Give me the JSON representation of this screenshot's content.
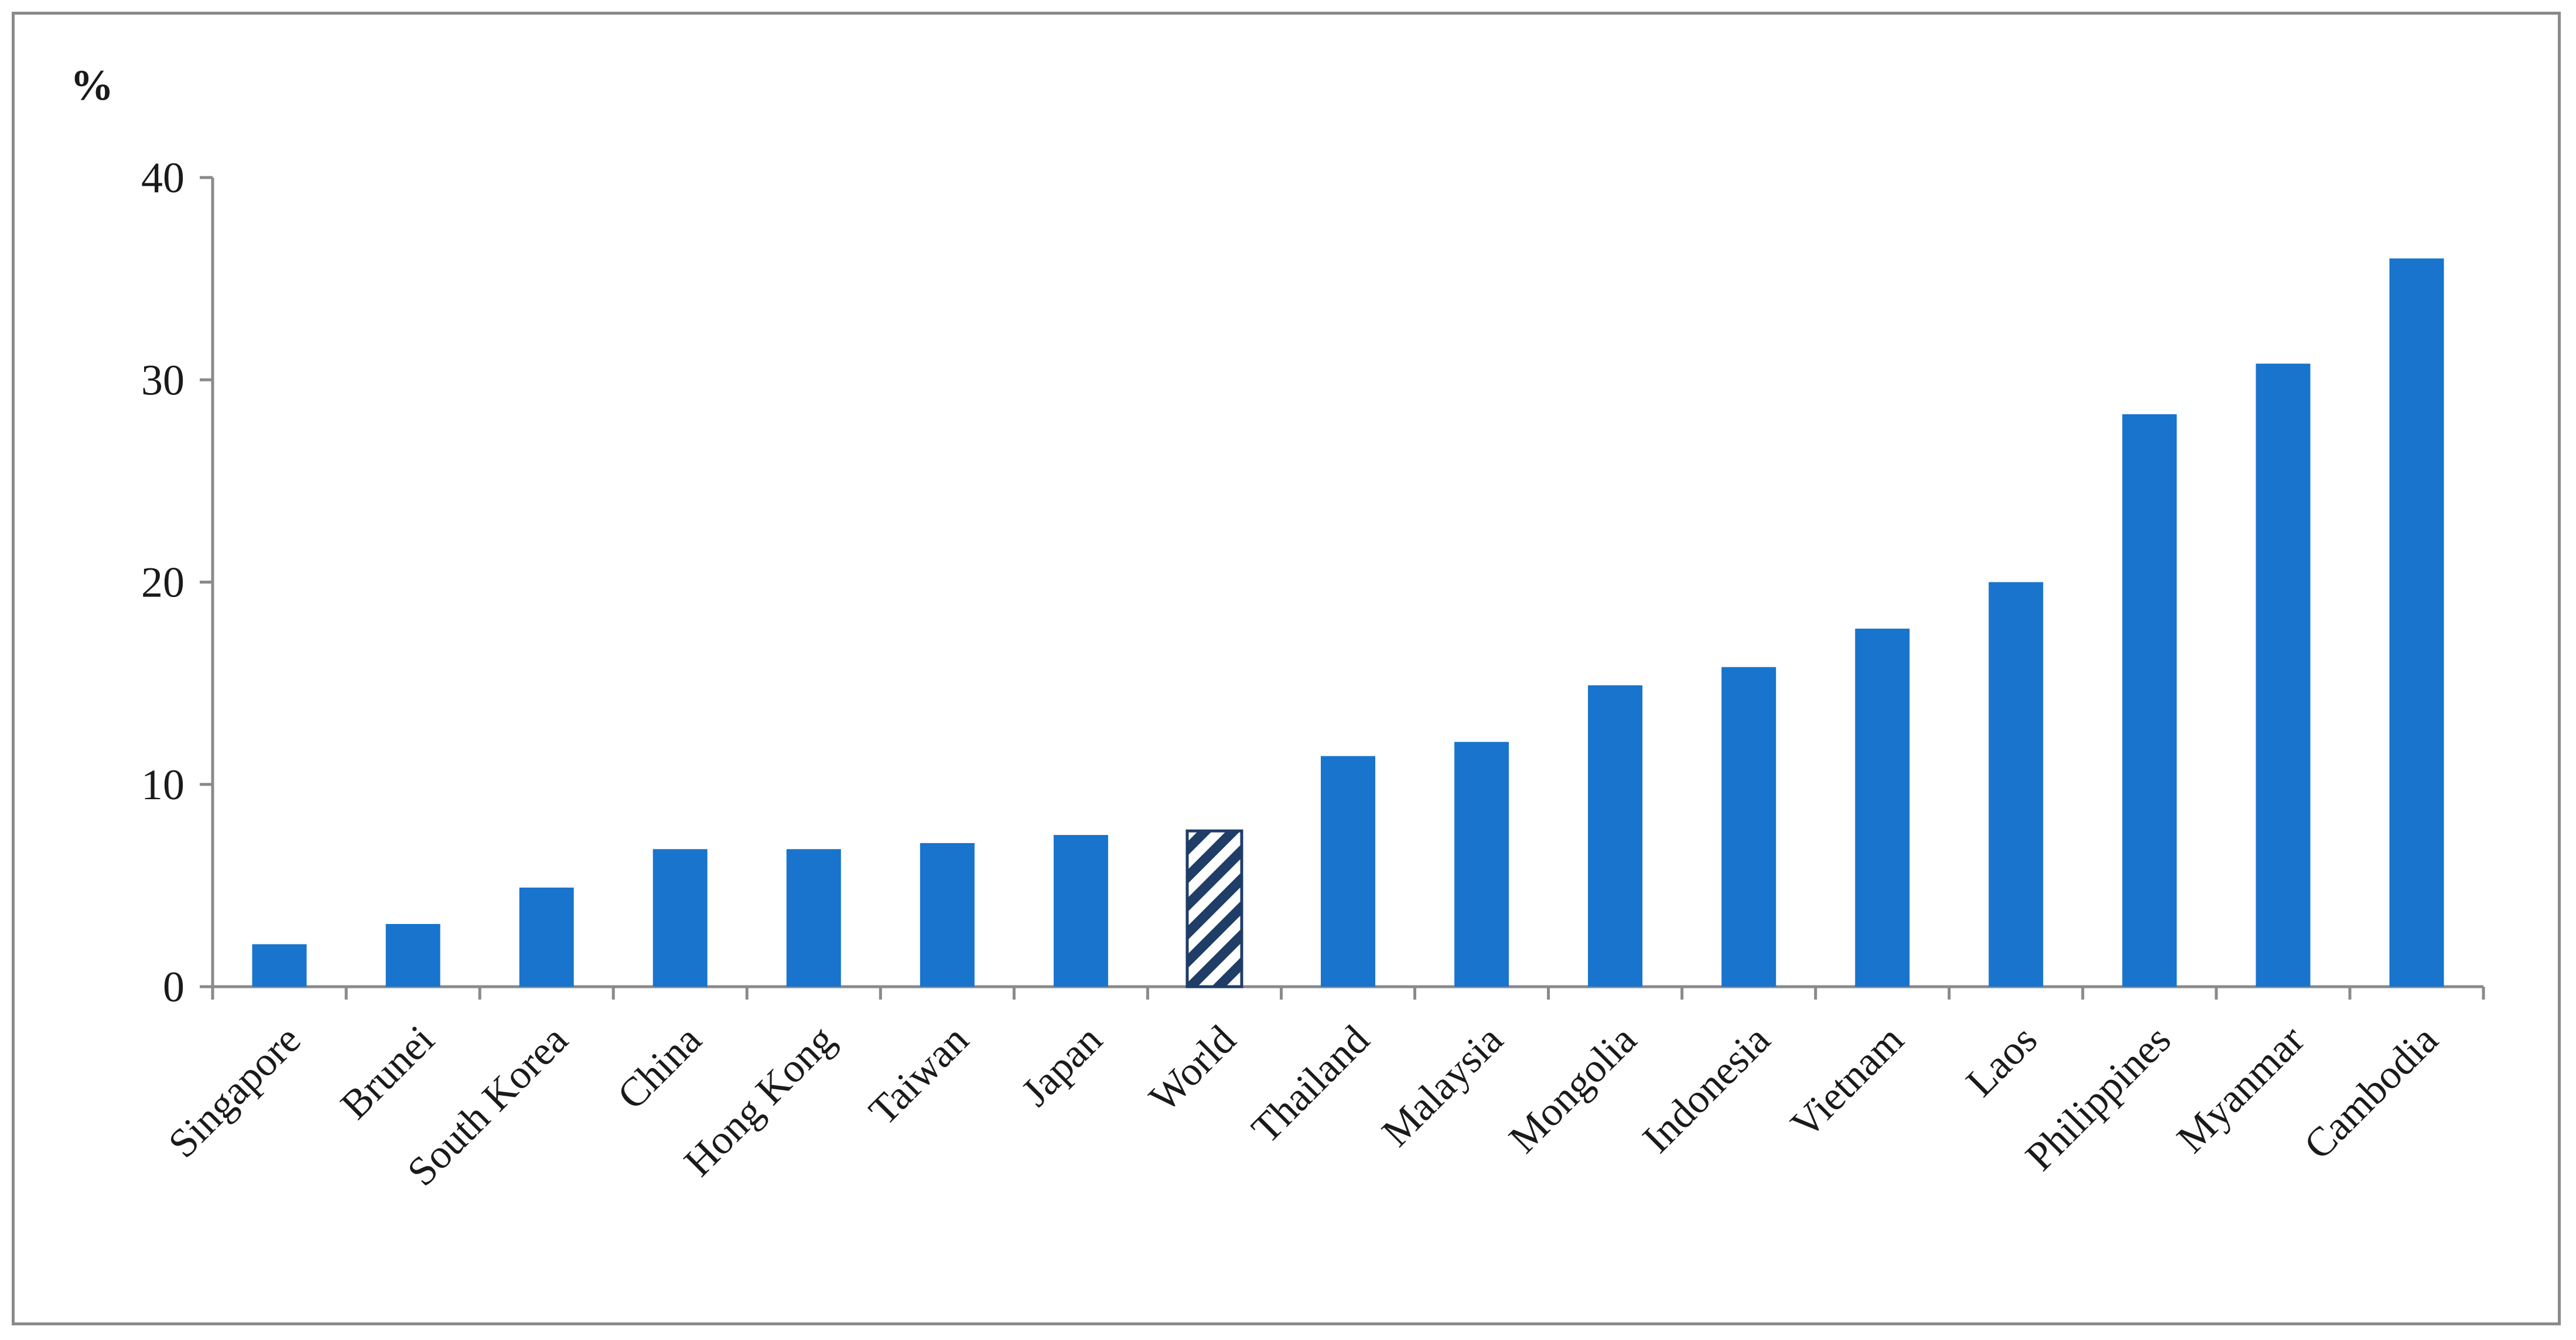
{
  "chart_data": {
    "type": "bar",
    "unit_label": "%",
    "categories": [
      "Singapore",
      "Brunei",
      "South Korea",
      "China",
      "Hong Kong",
      "Taiwan",
      "Japan",
      "World",
      "Thailand",
      "Malaysia",
      "Mongolia",
      "Indonesia",
      "Vietnam",
      "Laos",
      "Philippines",
      "Myanmar",
      "Cambodia"
    ],
    "values": [
      2.1,
      3.1,
      4.9,
      6.8,
      6.8,
      7.1,
      7.5,
      7.7,
      11.4,
      12.1,
      14.9,
      15.8,
      17.7,
      20.0,
      28.3,
      30.8,
      36.0
    ],
    "highlight_category": "World",
    "yticks": [
      0,
      10,
      20,
      30,
      40
    ],
    "ylim": [
      0,
      40
    ],
    "grid": false,
    "legend": "none",
    "colors": {
      "bar": "#1874CD",
      "highlight_stripe": "#1F3D66",
      "highlight_bg": "#ffffff",
      "axis": "#8a8a8a"
    }
  }
}
